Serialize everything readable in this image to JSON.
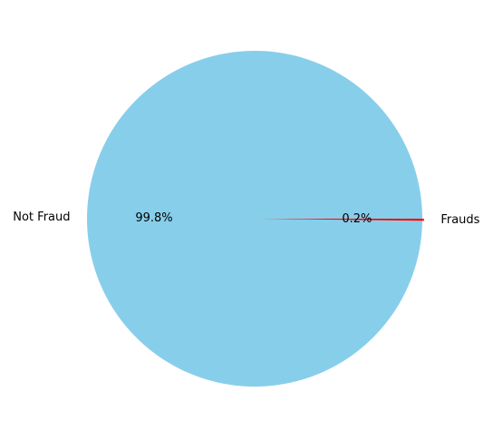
{
  "chart_data": {
    "type": "pie",
    "slices": [
      {
        "label": "Not Fraud",
        "value": 99.8,
        "pct_label": "99.8%",
        "color": "#87CEEB"
      },
      {
        "label": "Frauds",
        "value": 0.2,
        "pct_label": "0.2%",
        "color": "#FF0000"
      }
    ],
    "start_angle_deg": 0,
    "direction": "counterclockwise",
    "explode": [
      0,
      0.01
    ]
  }
}
